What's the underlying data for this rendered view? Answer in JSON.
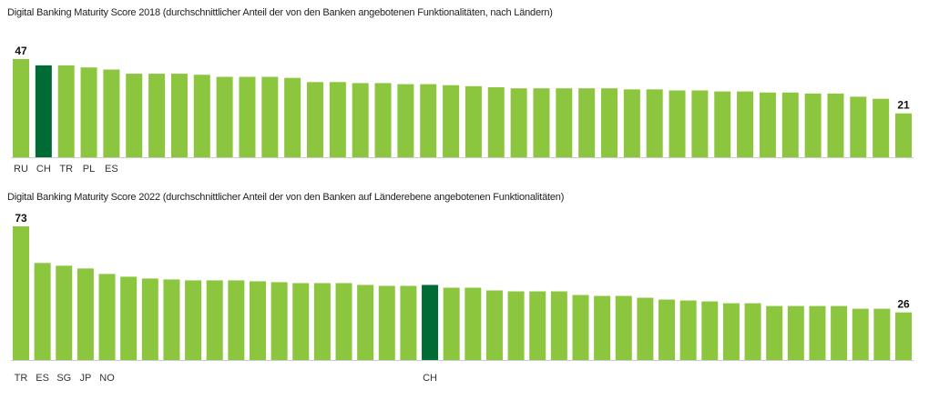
{
  "colors": {
    "bar": "#8cc63f",
    "highlight": "#006b35",
    "axis": "#cccccc"
  },
  "chart_data": [
    {
      "type": "bar",
      "title": "Digital Banking Maturity Score 2018 (durchschnittlicher Anteil der von den Banken angebotenen Funktionalitäten, nach Ländern)",
      "values": [
        47,
        44,
        44,
        43,
        42,
        40,
        40,
        40,
        39.5,
        38.5,
        38.5,
        38.5,
        38,
        36,
        36,
        35.5,
        35.5,
        35,
        35,
        34.5,
        34,
        33.5,
        33,
        33,
        33,
        33,
        33,
        32.5,
        32.5,
        32,
        32,
        31.5,
        31.5,
        31,
        31,
        30.5,
        30.5,
        29,
        28,
        21
      ],
      "highlight_index": 1,
      "category_labels": [
        "RU",
        "CH",
        "TR",
        "PL",
        "ES"
      ],
      "value_labels": [
        {
          "index": 0,
          "text": "47"
        },
        {
          "index": 39,
          "text": "21"
        }
      ],
      "ylim": [
        0,
        47
      ]
    },
    {
      "type": "bar",
      "title": "Digital Banking Maturity Score 2022 (durchschnittlicher Anteil der von den Banken auf Länderebene angebotenen Funktionalitäten)",
      "values": [
        73,
        53,
        51.5,
        50,
        47,
        45.5,
        44.5,
        44,
        43.5,
        43.5,
        43.5,
        43,
        42.5,
        42,
        42,
        42,
        41,
        40.5,
        40.5,
        41,
        39.5,
        39.5,
        38,
        37.5,
        37.5,
        37.5,
        35.5,
        35,
        35,
        34,
        33,
        32.5,
        32,
        31,
        31,
        29.5,
        29.5,
        29.5,
        29.5,
        28,
        28,
        26
      ],
      "highlight_index": 19,
      "category_labels": [
        "TR",
        "ES",
        "SG",
        "JP",
        "NO",
        "",
        "",
        "",
        "",
        "",
        "",
        "",
        "",
        "",
        "",
        "",
        "",
        "",
        "",
        "CH"
      ],
      "value_labels": [
        {
          "index": 0,
          "text": "73"
        },
        {
          "index": 41,
          "text": "26"
        }
      ],
      "ylim": [
        0,
        73
      ]
    }
  ]
}
